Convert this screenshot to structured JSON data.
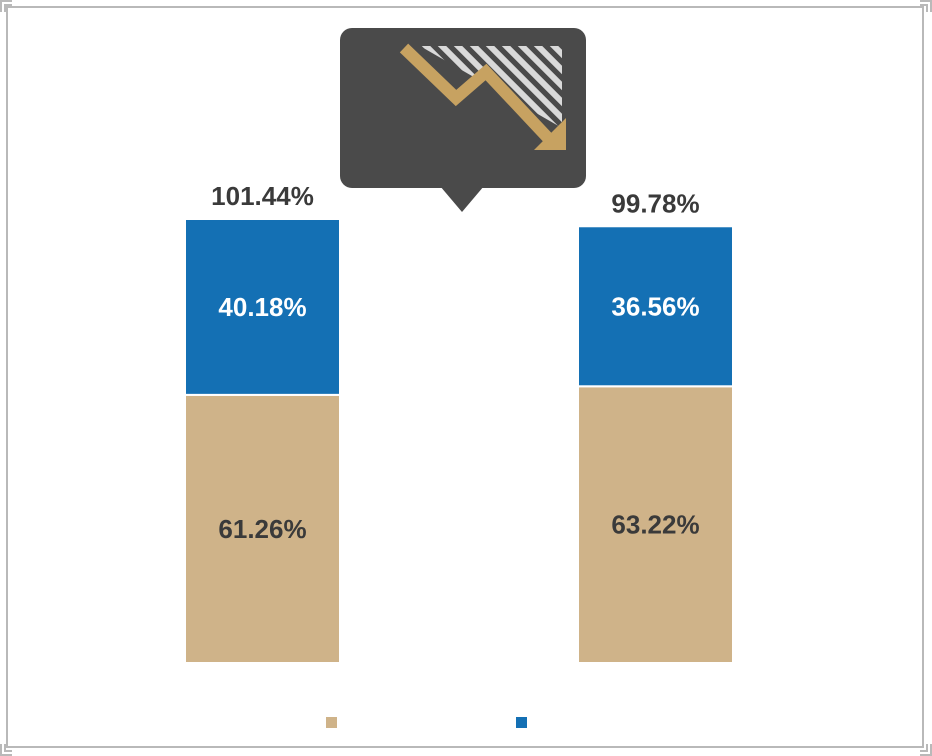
{
  "chart_data": {
    "type": "bar",
    "stacked": true,
    "title": "",
    "xlabel": "",
    "ylabel": "",
    "categories": [
      "",
      ""
    ],
    "series": [
      {
        "values": [
          61.26,
          63.22
        ],
        "labels": [
          "61.26%",
          "63.22%"
        ],
        "color": "#cfb389",
        "label_color": "#3a3a3a"
      },
      {
        "values": [
          40.18,
          36.56
        ],
        "labels": [
          "40.18%",
          "36.56%"
        ],
        "color": "#1470b4",
        "label_color": "#ffffff"
      }
    ],
    "totals": [
      101.44,
      99.78
    ],
    "total_labels": [
      "101.44%",
      "99.78%"
    ],
    "ylim": [
      0,
      101.44
    ],
    "grid": false,
    "legend": {
      "placement": "bottom-center",
      "entries": [
        "",
        ""
      ]
    }
  },
  "callout": {
    "icon": "downward-trend-arrow-icon",
    "background": "#4a4a4a",
    "arrow_color": "#c7a261",
    "hatch_color": "#d9d9d9"
  },
  "colors": {
    "frame": "#b9b9b9",
    "background": "#ffffff"
  }
}
